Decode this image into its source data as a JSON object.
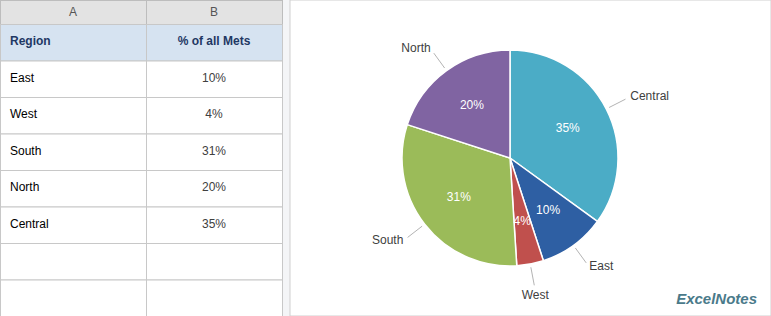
{
  "chart_data": [
    {
      "type": "pie",
      "categories": [
        "Central",
        "East",
        "West",
        "South",
        "North"
      ],
      "values": [
        35,
        10,
        4,
        31,
        20
      ],
      "value_labels": [
        "35%",
        "10%",
        "4%",
        "31%",
        "20%"
      ],
      "colors": [
        "#4BACC6",
        "#2E5FA3",
        "#C0504D",
        "#9BBB59",
        "#8064A2"
      ],
      "data_labels": true,
      "annotations": [
        "ExcelNotes"
      ]
    },
    {
      "type": "table",
      "columns": [
        "A",
        "B"
      ],
      "header": [
        "Region",
        "% of all Mets"
      ],
      "categories": [
        "East",
        "West",
        "South",
        "North",
        "Central"
      ],
      "values": [
        10,
        4,
        31,
        20,
        35
      ],
      "value_labels": [
        "10%",
        "4%",
        "31%",
        "20%",
        "35%"
      ]
    }
  ]
}
